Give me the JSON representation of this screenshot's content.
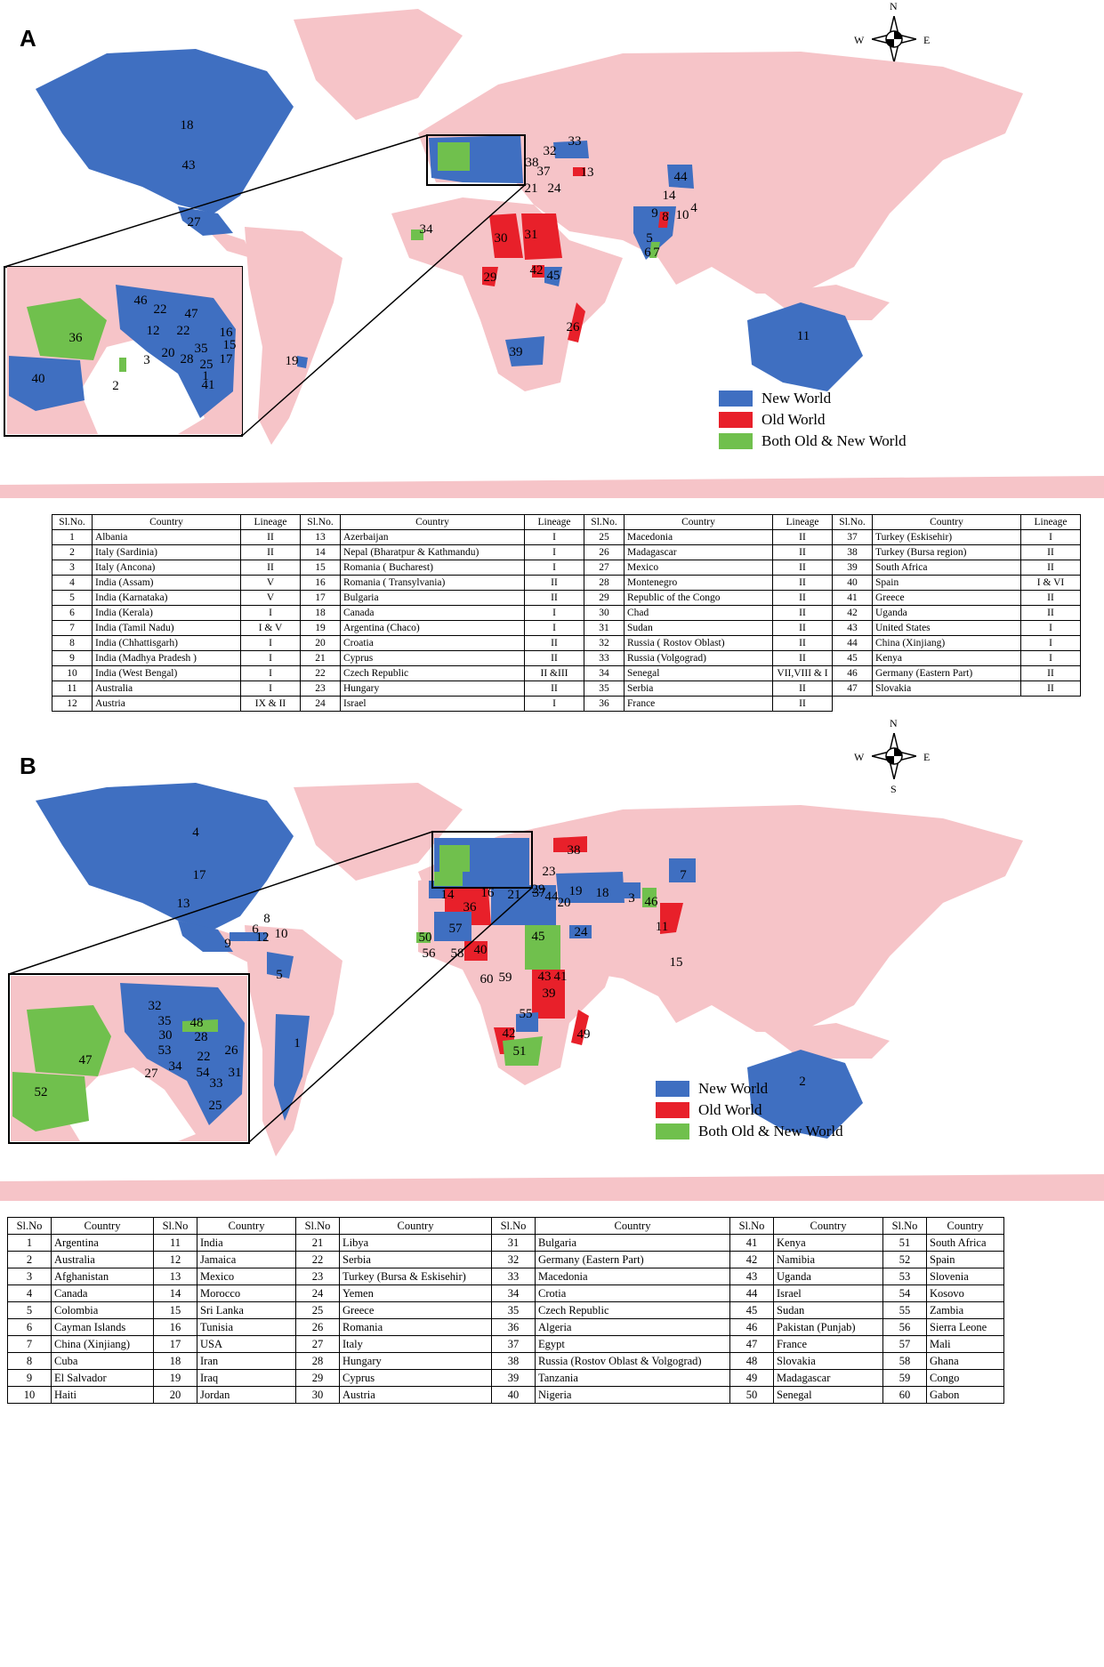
{
  "colors": {
    "new_world": "#3f6fc1",
    "old_world": "#e8202a",
    "both": "#70c04d",
    "land": "#f6c4c8",
    "background": "#ffffff"
  },
  "compass": {
    "n": "N",
    "s": "S",
    "e": "E",
    "w": "W"
  },
  "panel_a": {
    "letter": "A",
    "legend": {
      "new_world": "New World",
      "old_world": "Old World",
      "both": "Both Old & New World"
    },
    "map_labels": [
      "18",
      "43",
      "27",
      "19",
      "34",
      "30",
      "31",
      "29",
      "42",
      "45",
      "39",
      "26",
      "11",
      "32",
      "33",
      "38",
      "37",
      "13",
      "21",
      "24",
      "44",
      "14",
      "9",
      "8",
      "10",
      "4",
      "5",
      "6",
      "7"
    ],
    "inset_labels": [
      "46",
      "22",
      "47",
      "22",
      "16",
      "12",
      "15",
      "36",
      "35",
      "20",
      "28",
      "3",
      "25",
      "17",
      "40",
      "2",
      "1",
      "41"
    ],
    "table": {
      "headers": [
        "Sl.No.",
        "Country",
        "Lineage"
      ],
      "rows": [
        [
          "1",
          "Albania",
          "II"
        ],
        [
          "2",
          "Italy (Sardinia)",
          "II"
        ],
        [
          "3",
          "Italy (Ancona)",
          "II"
        ],
        [
          "4",
          "India (Assam)",
          "V"
        ],
        [
          "5",
          "India (Karnataka)",
          "V"
        ],
        [
          "6",
          "India (Kerala)",
          "I"
        ],
        [
          "7",
          "India (Tamil Nadu)",
          "I & V"
        ],
        [
          "8",
          "India (Chhattisgarh)",
          "I"
        ],
        [
          "9",
          "India (Madhya Pradesh )",
          "I"
        ],
        [
          "10",
          "India (West Bengal)",
          "I"
        ],
        [
          "11",
          "Australia",
          "I"
        ],
        [
          "12",
          "Austria",
          "IX & II"
        ],
        [
          "13",
          "Azerbaijan",
          "I"
        ],
        [
          "14",
          "Nepal (Bharatpur & Kathmandu)",
          "I"
        ],
        [
          "15",
          "Romania ( Bucharest)",
          "I"
        ],
        [
          "16",
          "Romania ( Transylvania)",
          "II"
        ],
        [
          "17",
          "Bulgaria",
          "II"
        ],
        [
          "18",
          "Canada",
          "I"
        ],
        [
          "19",
          "Argentina (Chaco)",
          "I"
        ],
        [
          "20",
          "Croatia",
          "II"
        ],
        [
          "21",
          "Cyprus",
          "II"
        ],
        [
          "22",
          "Czech Republic",
          "II &III"
        ],
        [
          "23",
          "Hungary",
          "II"
        ],
        [
          "24",
          "Israel",
          "I"
        ],
        [
          "25",
          "Macedonia",
          "II"
        ],
        [
          "26",
          "Madagascar",
          "II"
        ],
        [
          "27",
          "Mexico",
          "II"
        ],
        [
          "28",
          "Montenegro",
          "II"
        ],
        [
          "29",
          "Republic of the Congo",
          "II"
        ],
        [
          "30",
          "Chad",
          "II"
        ],
        [
          "31",
          "Sudan",
          "II"
        ],
        [
          "32",
          "Russia ( Rostov Oblast)",
          "II"
        ],
        [
          "33",
          "Russia (Volgograd)",
          "II"
        ],
        [
          "34",
          "Senegal",
          "VII,VIII & I"
        ],
        [
          "35",
          "Serbia",
          "II"
        ],
        [
          "36",
          "France",
          "II"
        ],
        [
          "37",
          "Turkey (Eskisehir)",
          "I"
        ],
        [
          "38",
          "Turkey (Bursa region)",
          "II"
        ],
        [
          "39",
          "South Africa",
          "II"
        ],
        [
          "40",
          "Spain",
          "I & VI"
        ],
        [
          "41",
          "Greece",
          "II"
        ],
        [
          "42",
          "Uganda",
          "II"
        ],
        [
          "43",
          "United States",
          "I"
        ],
        [
          "44",
          "China (Xinjiang)",
          "I"
        ],
        [
          "45",
          "Kenya",
          "I"
        ],
        [
          "46",
          "Germany (Eastern Part)",
          "II"
        ],
        [
          "47",
          "Slovakia",
          "II"
        ]
      ]
    }
  },
  "panel_b": {
    "letter": "B",
    "legend": {
      "new_world": "New World",
      "old_world": "Old World",
      "both": "Both Old & New World"
    },
    "map_labels": [
      "4",
      "17",
      "13",
      "8",
      "6",
      "12",
      "10",
      "9",
      "5",
      "1",
      "38",
      "23",
      "29",
      "44",
      "20",
      "19",
      "18",
      "3",
      "46",
      "7",
      "14",
      "16",
      "36",
      "21",
      "37",
      "57",
      "45",
      "24",
      "50",
      "56",
      "58",
      "40",
      "11",
      "15",
      "60",
      "59",
      "43",
      "41",
      "39",
      "55",
      "42",
      "51",
      "49",
      "2"
    ],
    "inset_labels": [
      "32",
      "35",
      "48",
      "30",
      "28",
      "53",
      "26",
      "22",
      "27",
      "34",
      "54",
      "31",
      "33",
      "25",
      "47",
      "52"
    ],
    "table": {
      "headers": [
        "Sl.No",
        "Country"
      ],
      "rows": [
        [
          "1",
          "Argentina"
        ],
        [
          "2",
          "Australia"
        ],
        [
          "3",
          "Afghanistan"
        ],
        [
          "4",
          "Canada"
        ],
        [
          "5",
          "Colombia"
        ],
        [
          "6",
          "Cayman Islands"
        ],
        [
          "7",
          "China (Xinjiang)"
        ],
        [
          "8",
          "Cuba"
        ],
        [
          "9",
          "El Salvador"
        ],
        [
          "10",
          "Haiti"
        ],
        [
          "11",
          "India"
        ],
        [
          "12",
          "Jamaica"
        ],
        [
          "13",
          "Mexico"
        ],
        [
          "14",
          "Morocco"
        ],
        [
          "15",
          "Sri Lanka"
        ],
        [
          "16",
          "Tunisia"
        ],
        [
          "17",
          "USA"
        ],
        [
          "18",
          "Iran"
        ],
        [
          "19",
          "Iraq"
        ],
        [
          "20",
          "Jordan"
        ],
        [
          "21",
          "Libya"
        ],
        [
          "22",
          "Serbia"
        ],
        [
          "23",
          "Turkey (Bursa & Eskisehir)"
        ],
        [
          "24",
          "Yemen"
        ],
        [
          "25",
          "Greece"
        ],
        [
          "26",
          "Romania"
        ],
        [
          "27",
          "Italy"
        ],
        [
          "28",
          "Hungary"
        ],
        [
          "29",
          "Cyprus"
        ],
        [
          "30",
          "Austria"
        ],
        [
          "31",
          "Bulgaria"
        ],
        [
          "32",
          "Germany (Eastern Part)"
        ],
        [
          "33",
          "Macedonia"
        ],
        [
          "34",
          "Crotia"
        ],
        [
          "35",
          "Czech Republic"
        ],
        [
          "36",
          "Algeria"
        ],
        [
          "37",
          "Egypt"
        ],
        [
          "38",
          "Russia (Rostov Oblast & Volgograd)"
        ],
        [
          "39",
          "Tanzania"
        ],
        [
          "40",
          "Nigeria"
        ],
        [
          "41",
          "Kenya"
        ],
        [
          "42",
          "Namibia"
        ],
        [
          "43",
          "Uganda"
        ],
        [
          "44",
          "Israel"
        ],
        [
          "45",
          "Sudan"
        ],
        [
          "46",
          "Pakistan (Punjab)"
        ],
        [
          "47",
          "France"
        ],
        [
          "48",
          "Slovakia"
        ],
        [
          "49",
          "Madagascar"
        ],
        [
          "50",
          "Senegal"
        ],
        [
          "51",
          "South Africa"
        ],
        [
          "52",
          "Spain"
        ],
        [
          "53",
          "Slovenia"
        ],
        [
          "54",
          "Kosovo"
        ],
        [
          "55",
          "Zambia"
        ],
        [
          "56",
          "Sierra Leone"
        ],
        [
          "57",
          "Mali"
        ],
        [
          "58",
          "Ghana"
        ],
        [
          "59",
          "Congo"
        ],
        [
          "60",
          "Gabon"
        ]
      ]
    }
  }
}
